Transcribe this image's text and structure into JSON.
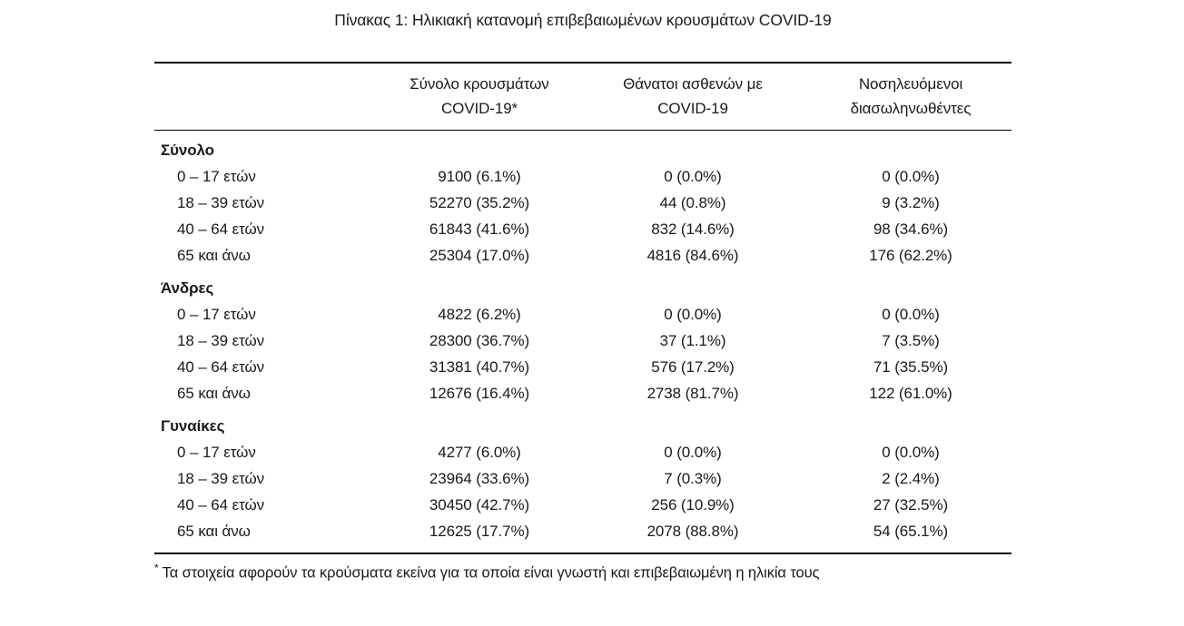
{
  "page": {
    "title": "Πίνακας 1: Ηλικιακή κατανομή επιβεβαιωμένων κρουσμάτων COVID-19"
  },
  "table": {
    "column_headers": [
      {
        "line1": "Σύνολο κρουσμάτων",
        "line2": "COVID-19*"
      },
      {
        "line1": "Θάνατοι ασθενών με",
        "line2": "COVID-19"
      },
      {
        "line1": "Νοσηλευόμενοι",
        "line2": "διασωληνωθέντες"
      }
    ],
    "sections": [
      {
        "label": "Σύνολο",
        "rows": [
          {
            "label": "0 – 17 ετών",
            "cases": "9100 (6.1%)",
            "deaths": "0 (0.0%)",
            "intubated": "0 (0.0%)"
          },
          {
            "label": "18 – 39 ετών",
            "cases": "52270 (35.2%)",
            "deaths": "44 (0.8%)",
            "intubated": "9 (3.2%)"
          },
          {
            "label": "40 – 64 ετών",
            "cases": "61843 (41.6%)",
            "deaths": "832 (14.6%)",
            "intubated": "98 (34.6%)"
          },
          {
            "label": "65 και άνω",
            "cases": "25304 (17.0%)",
            "deaths": "4816 (84.6%)",
            "intubated": "176 (62.2%)"
          }
        ]
      },
      {
        "label": "Άνδρες",
        "rows": [
          {
            "label": "0 – 17 ετών",
            "cases": "4822 (6.2%)",
            "deaths": "0 (0.0%)",
            "intubated": "0 (0.0%)"
          },
          {
            "label": "18 – 39 ετών",
            "cases": "28300 (36.7%)",
            "deaths": "37 (1.1%)",
            "intubated": "7 (3.5%)"
          },
          {
            "label": "40 – 64 ετών",
            "cases": "31381 (40.7%)",
            "deaths": "576 (17.2%)",
            "intubated": "71 (35.5%)"
          },
          {
            "label": "65 και άνω",
            "cases": "12676 (16.4%)",
            "deaths": "2738 (81.7%)",
            "intubated": "122 (61.0%)"
          }
        ]
      },
      {
        "label": "Γυναίκες",
        "rows": [
          {
            "label": "0 – 17 ετών",
            "cases": "4277 (6.0%)",
            "deaths": "0 (0.0%)",
            "intubated": "0 (0.0%)"
          },
          {
            "label": "18 – 39 ετών",
            "cases": "23964 (33.6%)",
            "deaths": "7 (0.3%)",
            "intubated": "2 (2.4%)"
          },
          {
            "label": "40 – 64 ετών",
            "cases": "30450 (42.7%)",
            "deaths": "256 (10.9%)",
            "intubated": "27 (32.5%)"
          },
          {
            "label": "65 και άνω",
            "cases": "12625 (17.7%)",
            "deaths": "2078 (88.8%)",
            "intubated": "54 (65.1%)"
          }
        ]
      }
    ]
  },
  "footnote": {
    "marker": "*",
    "text": "Τα στοιχεία αφορούν τα κρούσματα εκείνα για τα οποία είναι γνωστή και επιβεβαιωμένη η ηλικία τους"
  }
}
